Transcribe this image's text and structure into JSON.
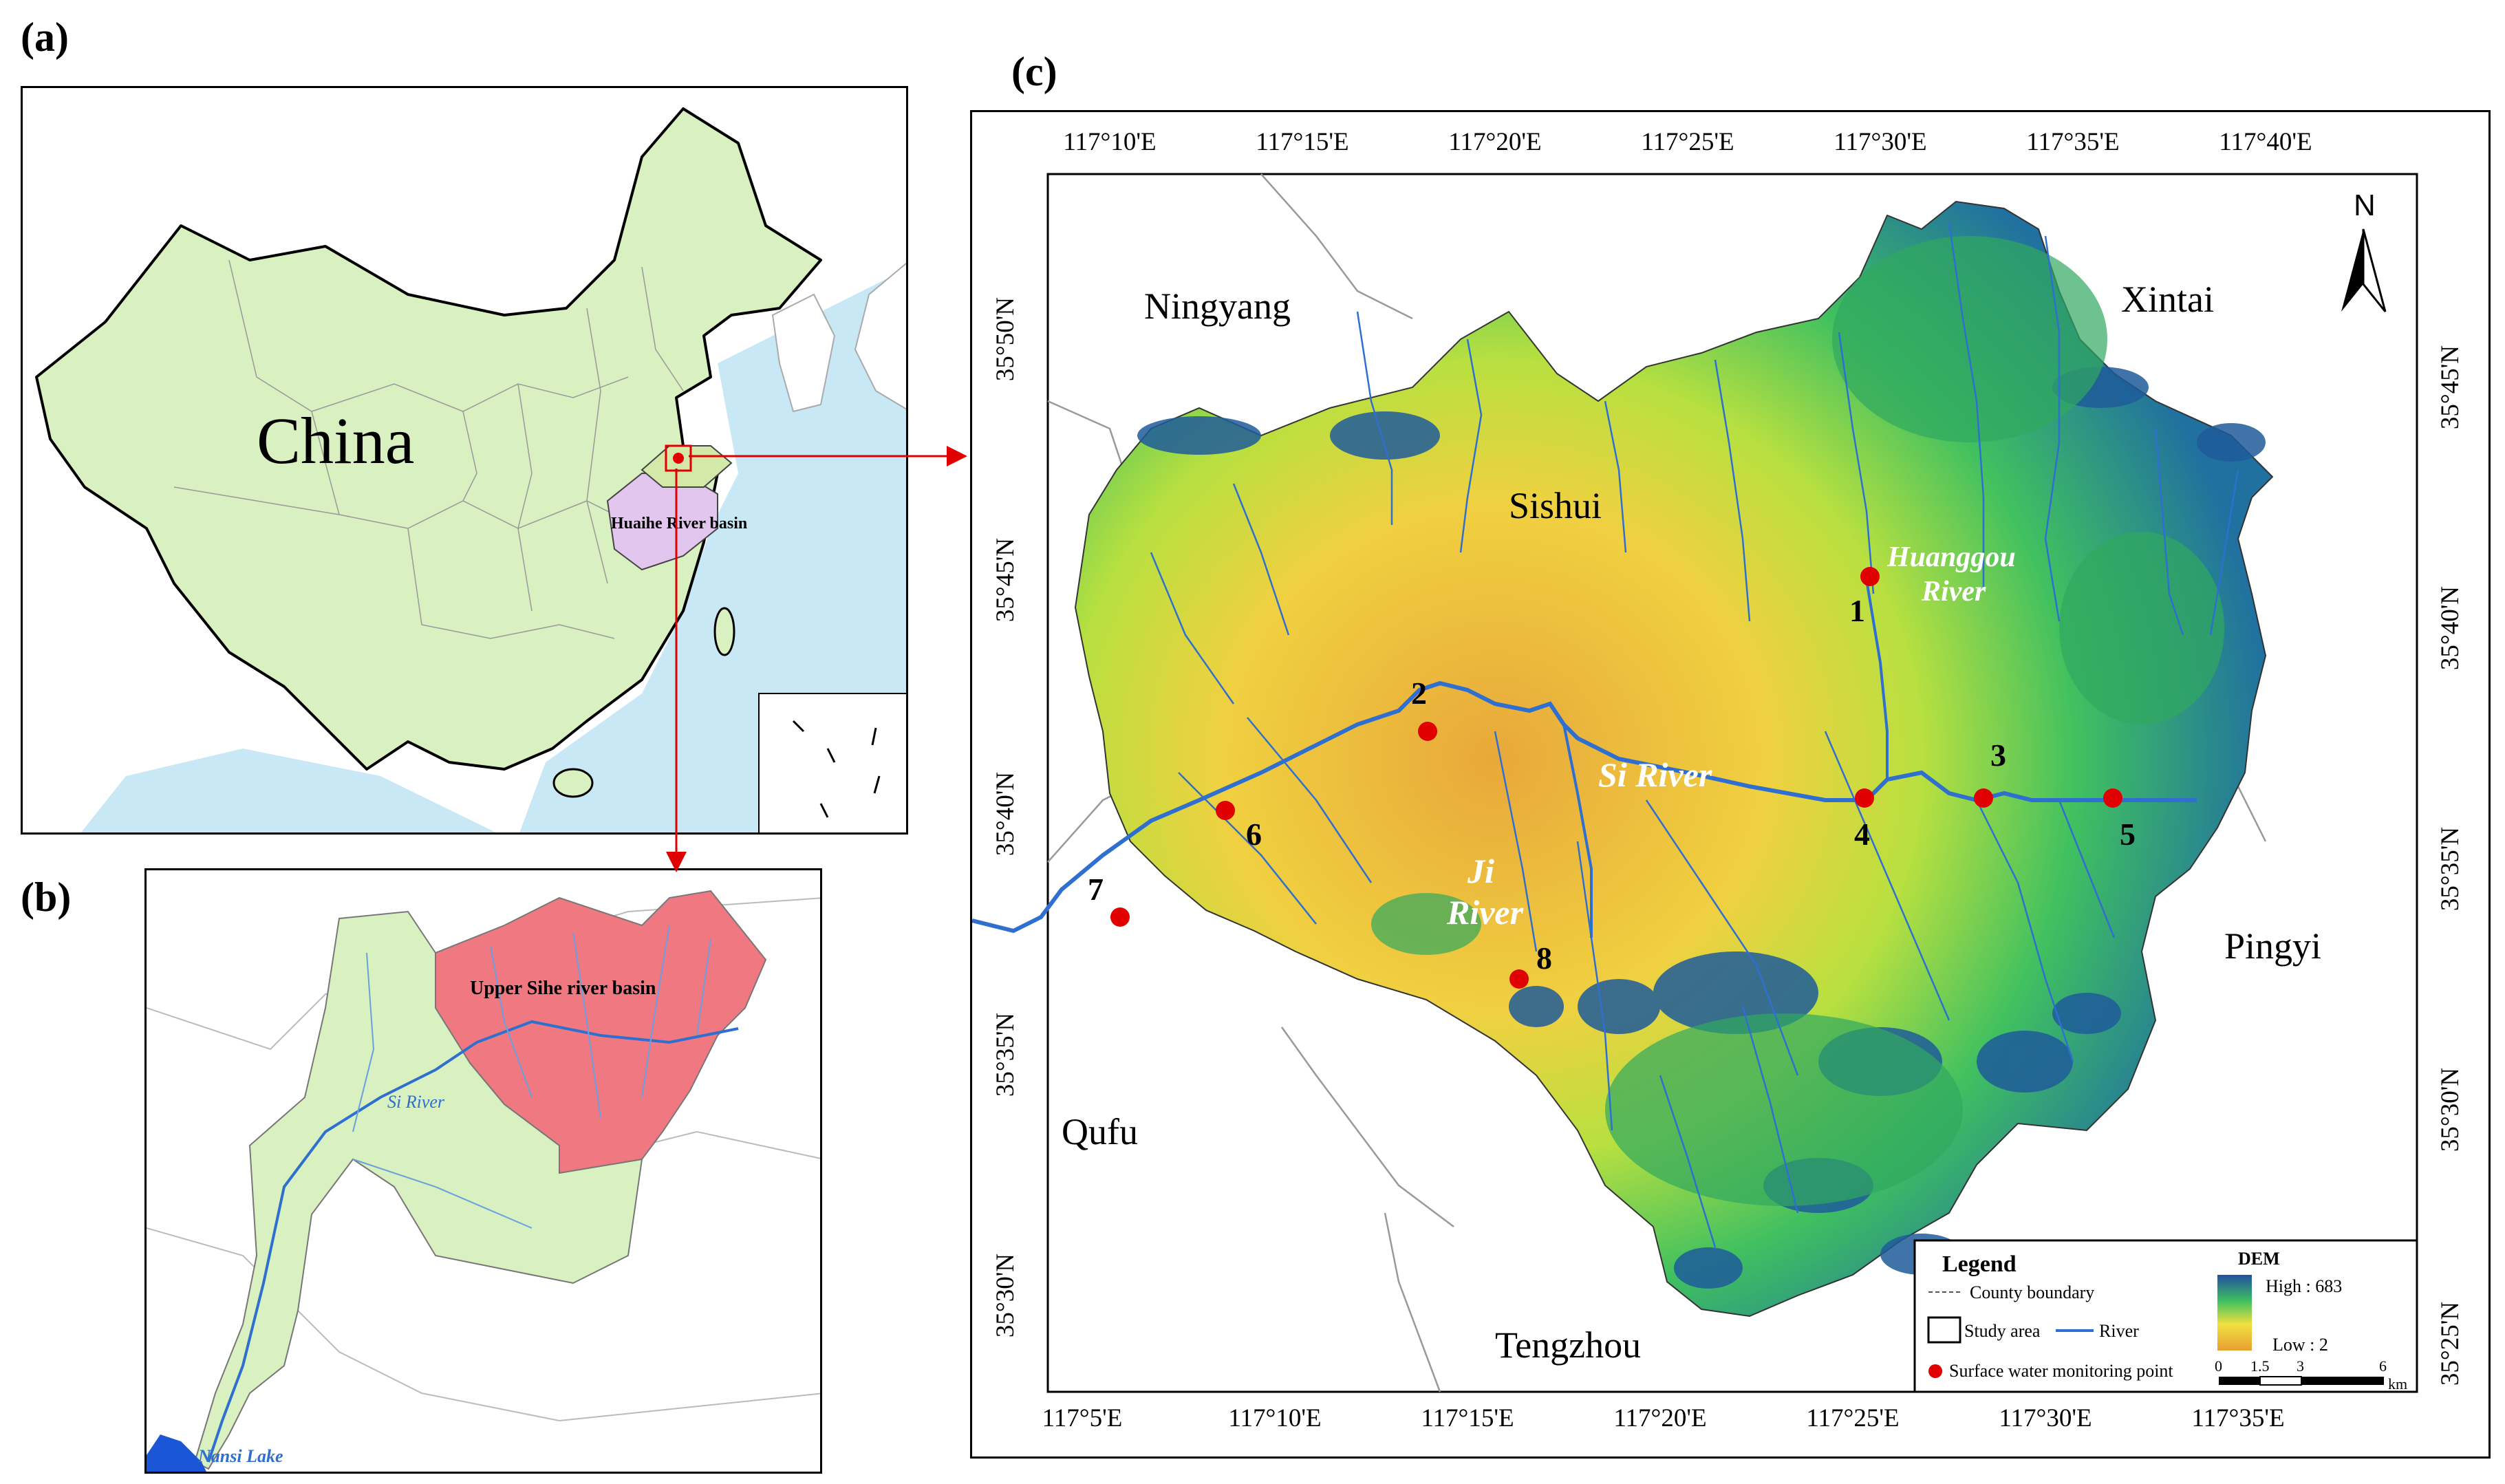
{
  "panel_a": {
    "label": "(a)",
    "country": "China",
    "basin_label": "Huaihe River basin"
  },
  "panel_b": {
    "label": "(b)",
    "basin_label": "Upper Sihe river basin",
    "river_label": "Si River",
    "lake_label": "Nansi Lake"
  },
  "panel_c": {
    "label": "(c)",
    "lon_ticks_top": [
      "117°10'E",
      "117°15'E",
      "117°20'E",
      "117°25'E",
      "117°30'E",
      "117°35'E",
      "117°40'E"
    ],
    "lon_ticks_bottom": [
      "117°5'E",
      "117°10'E",
      "117°15'E",
      "117°20'E",
      "117°25'E",
      "117°30'E",
      "117°35'E"
    ],
    "lat_ticks_left": [
      "35°50'N",
      "35°45'N",
      "35°40'N",
      "35°35'N",
      "35°30'N"
    ],
    "lat_ticks_right": [
      "35°45'N",
      "35°40'N",
      "35°35'N",
      "35°30'N",
      "35°25'N"
    ],
    "places": {
      "ningyang": "Ningyang",
      "xintai": "Xintai",
      "sishui": "Sishui",
      "pingyi": "Pingyi",
      "qufu": "Qufu",
      "tengzhou": "Tengzhou"
    },
    "rivers": {
      "huanggou_1": "Huanggou",
      "huanggou_2": "River",
      "si": "Si River",
      "ji_1": "Ji",
      "ji_2": "River"
    },
    "monitoring_points": [
      {
        "id": "1"
      },
      {
        "id": "2"
      },
      {
        "id": "3"
      },
      {
        "id": "4"
      },
      {
        "id": "5"
      },
      {
        "id": "6"
      },
      {
        "id": "7"
      },
      {
        "id": "8"
      }
    ],
    "north_arrow": "N",
    "legend": {
      "title": "Legend",
      "county_boundary": "County boundary",
      "study_area": "Study area",
      "river": "River",
      "monitoring_point": "Surface water monitoring point",
      "dem_title": "DEM",
      "dem_high": "High : 683",
      "dem_low": "Low : 2",
      "scale_ticks": [
        "0",
        "1.5",
        "3",
        "6"
      ],
      "scale_unit": "km"
    }
  },
  "colors": {
    "china_fill": "#d9f0c0",
    "sea": "#c9e8f5",
    "huaihe": "#e2c6ee",
    "upper_sihe": "#f07880",
    "river": "#2f6fd0",
    "point": "#e00000",
    "arrow": "#e00000"
  }
}
